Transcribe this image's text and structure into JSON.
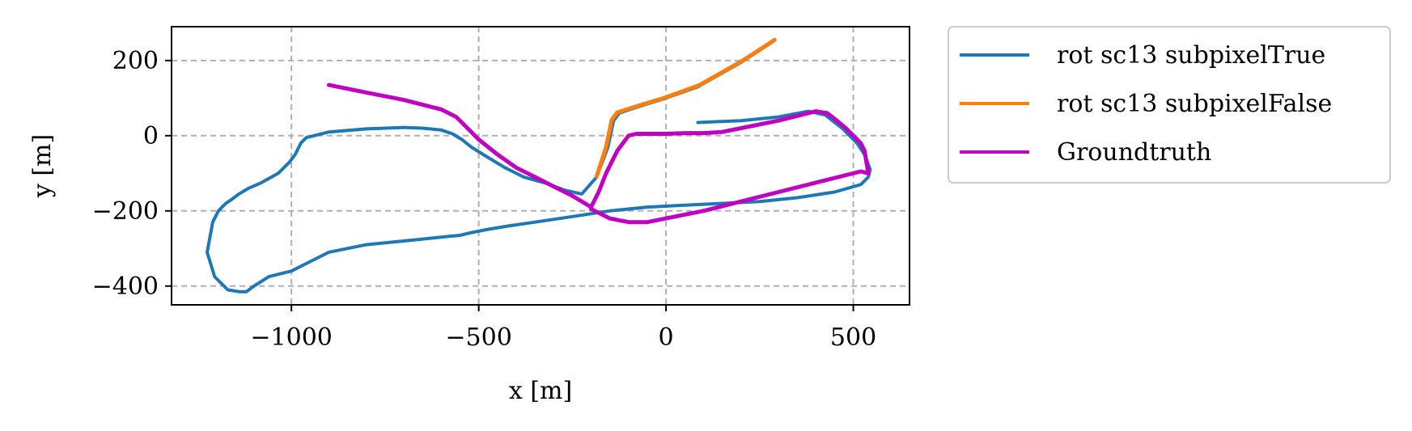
{
  "chart_data": {
    "type": "line",
    "title": "",
    "xlabel": "x [m]",
    "ylabel": "y [m]",
    "xlim": [
      -1320,
      650
    ],
    "ylim": [
      -450,
      290
    ],
    "x_ticks": [
      -1000,
      -500,
      0,
      500
    ],
    "x_tick_labels": [
      "−1000",
      "−500",
      "0",
      "500"
    ],
    "y_ticks": [
      200,
      0,
      -200,
      -400
    ],
    "y_tick_labels": [
      "200",
      "0",
      "−200",
      "−400"
    ],
    "grid": true,
    "legend_position": "outside-right",
    "series": [
      {
        "name": "rot sc13 subpixelTrue",
        "color": "#1f77b4",
        "x": [
          285,
          200,
          85,
          0,
          -80,
          -125,
          -140,
          -155,
          -185,
          -225,
          -270,
          -325,
          -380,
          -430,
          -480,
          -520,
          -545,
          -570,
          -600,
          -650,
          -700,
          -800,
          -900,
          -960,
          -975,
          -990,
          -1005,
          -1020,
          -1035,
          -1080,
          -1115,
          -1140,
          -1160,
          -1175,
          -1185,
          -1195,
          -1210,
          -1225,
          -1205,
          -1170,
          -1140,
          -1120,
          -1100,
          -1060,
          -1000,
          -900,
          -800,
          -700,
          -600,
          -550,
          -520,
          -480,
          -420,
          -350,
          -250,
          -150,
          -50,
          50,
          150,
          250,
          350,
          450,
          520,
          540,
          545,
          530,
          510,
          470,
          425,
          380,
          300,
          200,
          85
        ],
        "y": [
          250,
          195,
          130,
          100,
          75,
          60,
          40,
          -30,
          -110,
          -155,
          -145,
          -125,
          -110,
          -85,
          -55,
          -30,
          -10,
          5,
          15,
          20,
          22,
          18,
          10,
          -5,
          -20,
          -50,
          -70,
          -85,
          -100,
          -125,
          -140,
          -155,
          -170,
          -180,
          -190,
          -200,
          -230,
          -310,
          -375,
          -410,
          -415,
          -415,
          -400,
          -375,
          -360,
          -310,
          -290,
          -280,
          -270,
          -265,
          -258,
          -250,
          -240,
          -230,
          -215,
          -200,
          -190,
          -185,
          -180,
          -175,
          -165,
          -150,
          -130,
          -110,
          -90,
          -50,
          -20,
          20,
          55,
          65,
          50,
          40,
          35
        ],
        "comment": ""
      },
      {
        "name": "rot sc13 subpixelFalse",
        "color": "#ff7f0e",
        "x": [
          290,
          205,
          90,
          0,
          -80,
          -130,
          -145,
          -160,
          -185
        ],
        "y": [
          255,
          200,
          135,
          102,
          78,
          62,
          42,
          -30,
          -108
        ]
      },
      {
        "name": "Groundtruth",
        "color": "#c000c0",
        "x": [
          -900,
          -800,
          -700,
          -600,
          -560,
          -540,
          -500,
          -450,
          -400,
          -350,
          -300,
          -250,
          -200,
          -180,
          -160,
          -130,
          -100,
          -80,
          -60,
          0,
          50,
          100,
          150,
          200,
          300,
          400,
          430,
          450,
          480,
          500,
          520,
          530,
          540,
          520,
          300,
          100,
          -50,
          -100,
          -150,
          -200
        ],
        "y": [
          135,
          115,
          95,
          70,
          50,
          30,
          -10,
          -50,
          -85,
          -110,
          -135,
          -160,
          -190,
          -150,
          -100,
          -40,
          0,
          5,
          5,
          5,
          7,
          7,
          10,
          20,
          40,
          65,
          60,
          45,
          20,
          0,
          -20,
          -40,
          -100,
          -95,
          -150,
          -200,
          -230,
          -230,
          -220,
          -195
        ]
      }
    ]
  },
  "legend": {
    "items": [
      {
        "label": "rot sc13 subpixelTrue",
        "color": "#1f77b4"
      },
      {
        "label": "rot sc13 subpixelFalse",
        "color": "#ff7f0e"
      },
      {
        "label": "Groundtruth",
        "color": "#c000c0"
      }
    ]
  }
}
